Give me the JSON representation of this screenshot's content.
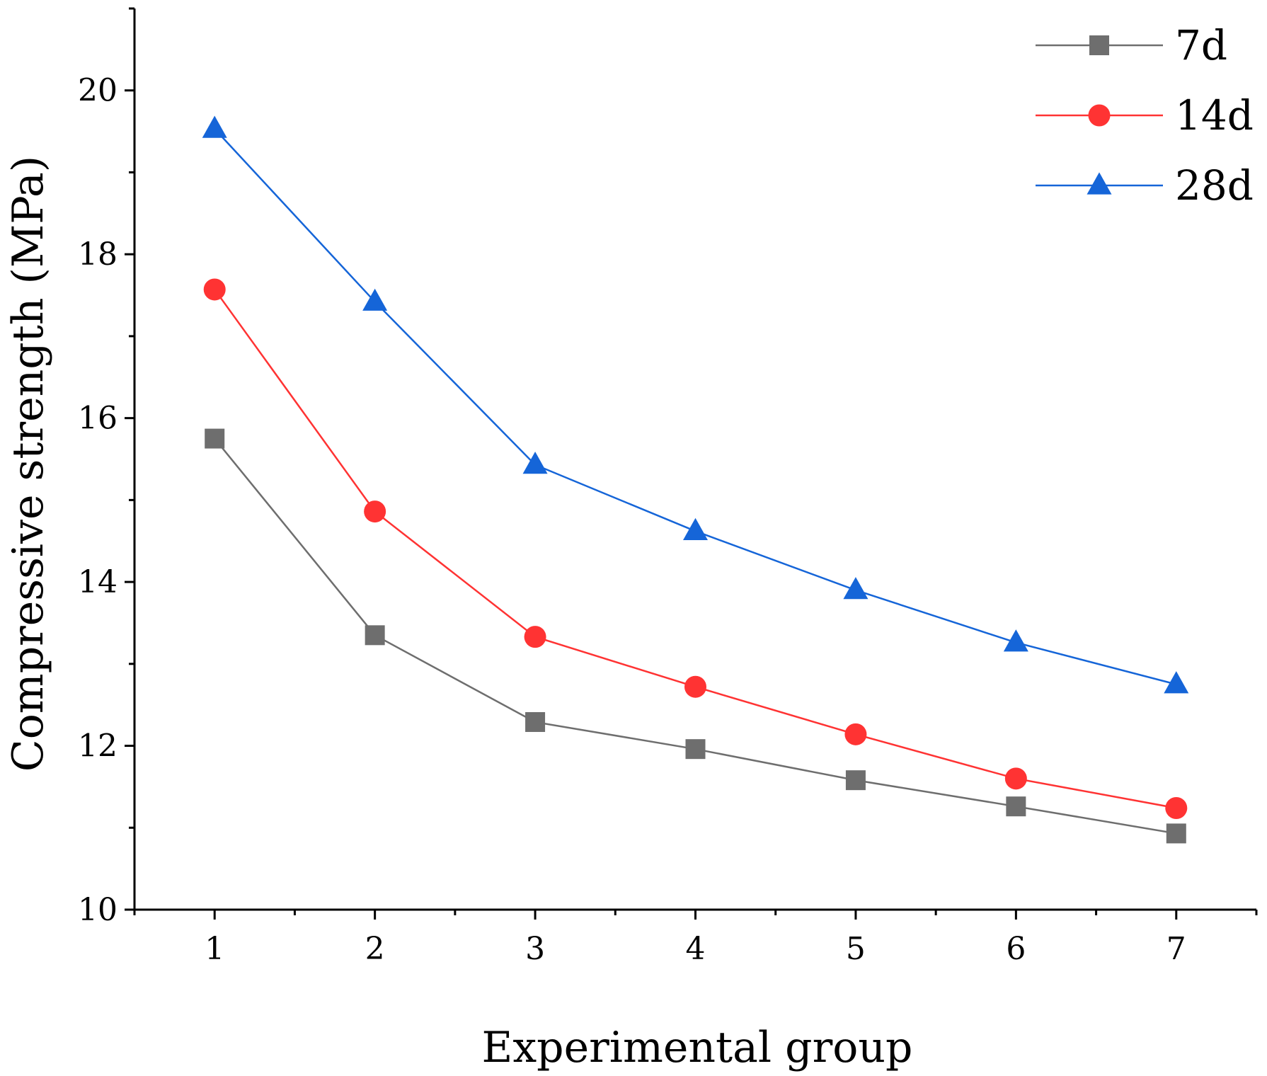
{
  "chart_data": {
    "type": "line",
    "title": "",
    "xlabel": "Experimental group",
    "ylabel": "Compressive strength (MPa)",
    "x": [
      1,
      2,
      3,
      4,
      5,
      6,
      7
    ],
    "xlim": [
      0.5,
      7.5
    ],
    "ylim": [
      10,
      21
    ],
    "x_ticks": [
      1,
      2,
      3,
      4,
      5,
      6,
      7
    ],
    "y_ticks": [
      10,
      12,
      14,
      16,
      18,
      20
    ],
    "grid": false,
    "legend_position": "top-right",
    "series": [
      {
        "name": "7d",
        "marker": "square",
        "color": "#6e6e6e",
        "values": [
          15.75,
          13.35,
          12.29,
          11.96,
          11.58,
          11.26,
          10.93
        ]
      },
      {
        "name": "14d",
        "marker": "circle",
        "color": "#ff3333",
        "values": [
          17.57,
          14.86,
          13.33,
          12.72,
          12.14,
          11.6,
          11.24
        ]
      },
      {
        "name": "28d",
        "marker": "triangle",
        "color": "#1565d8",
        "values": [
          19.53,
          17.42,
          15.43,
          14.62,
          13.9,
          13.26,
          12.75
        ]
      }
    ]
  }
}
